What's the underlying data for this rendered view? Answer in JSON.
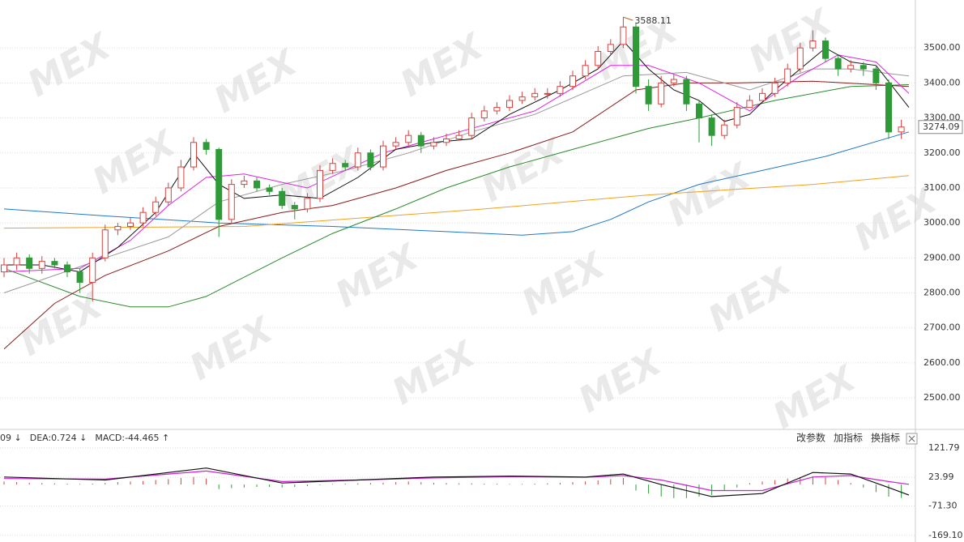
{
  "chart_data": [
    {
      "type": "candlestick",
      "watermark": "MEX",
      "up_color": "#d8413e",
      "down_color": "#2f9a38",
      "open": [
        2860,
        2880,
        2900,
        2870,
        2890,
        2880,
        2860,
        2830,
        2900,
        2980,
        2990,
        3000,
        3030,
        3060,
        3100,
        3160,
        3230,
        3210,
        3010,
        3110,
        3120,
        3100,
        3090,
        3050,
        3040,
        3070,
        3150,
        3170,
        3160,
        3200,
        3160,
        3220,
        3230,
        3250,
        3220,
        3230,
        3240,
        3250,
        3300,
        3320,
        3330,
        3350,
        3360,
        3370,
        3370,
        3390,
        3420,
        3450,
        3490,
        3510,
        3560,
        3390,
        3340,
        3400,
        3410,
        3340,
        3300,
        3250,
        3280,
        3330,
        3350,
        3370,
        3400,
        3440,
        3500,
        3520,
        3470,
        3440,
        3450,
        3440,
        3400,
        3260
      ],
      "high": [
        2900,
        2915,
        2910,
        2905,
        2900,
        2890,
        2870,
        2915,
        2995,
        3000,
        3015,
        3045,
        3075,
        3115,
        3180,
        3245,
        3240,
        3215,
        3125,
        3135,
        3130,
        3110,
        3100,
        3060,
        3085,
        3165,
        3185,
        3180,
        3215,
        3210,
        3235,
        3245,
        3265,
        3260,
        3245,
        3255,
        3265,
        3315,
        3335,
        3345,
        3365,
        3375,
        3385,
        3385,
        3405,
        3435,
        3465,
        3505,
        3525,
        3588.11,
        3570,
        3410,
        3420,
        3425,
        3420,
        3350,
        3310,
        3295,
        3345,
        3365,
        3385,
        3415,
        3455,
        3515,
        3550,
        3530,
        3480,
        3465,
        3460,
        3450,
        3410,
        3295
      ],
      "low": [
        2845,
        2865,
        2855,
        2855,
        2870,
        2845,
        2800,
        2775,
        2890,
        2965,
        2980,
        2990,
        3020,
        3050,
        3090,
        3150,
        3195,
        2960,
        3000,
        3100,
        3090,
        3080,
        3040,
        3010,
        3030,
        3060,
        3140,
        3150,
        3150,
        3150,
        3150,
        3210,
        3220,
        3200,
        3210,
        3220,
        3235,
        3240,
        3290,
        3310,
        3320,
        3340,
        3350,
        3355,
        3360,
        3380,
        3410,
        3440,
        3480,
        3500,
        3370,
        3320,
        3330,
        3390,
        3320,
        3230,
        3220,
        3240,
        3270,
        3330,
        3350,
        3360,
        3390,
        3430,
        3490,
        3460,
        3420,
        3430,
        3420,
        3380,
        3240,
        3240
      ],
      "close": [
        2880,
        2900,
        2870,
        2890,
        2880,
        2860,
        2830,
        2900,
        2980,
        2990,
        3000,
        3030,
        3060,
        3100,
        3160,
        3230,
        3210,
        3010,
        3110,
        3120,
        3100,
        3090,
        3050,
        3040,
        3070,
        3150,
        3170,
        3160,
        3200,
        3160,
        3220,
        3230,
        3250,
        3220,
        3230,
        3240,
        3250,
        3300,
        3320,
        3330,
        3350,
        3360,
        3370,
        3370,
        3390,
        3420,
        3450,
        3490,
        3510,
        3560,
        3390,
        3340,
        3400,
        3410,
        3340,
        3300,
        3250,
        3280,
        3330,
        3350,
        3370,
        3400,
        3440,
        3500,
        3520,
        3470,
        3440,
        3450,
        3440,
        3400,
        3260,
        3274.09
      ],
      "lines": [
        {
          "color": "#1f78c8",
          "x": [
            0,
            8,
            17,
            26,
            35,
            41,
            45,
            48,
            51,
            55,
            60,
            65,
            71.6
          ],
          "values": [
            3040,
            3020,
            3000,
            2990,
            2975,
            2965,
            2975,
            3010,
            3060,
            3110,
            3150,
            3190,
            3260
          ]
        },
        {
          "color": "#f0a020",
          "x": [
            0,
            19,
            38,
            51,
            64,
            71.6
          ],
          "values": [
            2985,
            2990,
            3040,
            3080,
            3110,
            3135
          ]
        },
        {
          "color": "#2a8a2a",
          "x": [
            0,
            6,
            10,
            13,
            16,
            22,
            26,
            31,
            35,
            40,
            45,
            51,
            55,
            61,
            67,
            71.6
          ],
          "values": [
            2870,
            2790,
            2760,
            2760,
            2790,
            2900,
            2970,
            3040,
            3100,
            3160,
            3210,
            3270,
            3300,
            3350,
            3390,
            3395
          ]
        },
        {
          "color": "#8b1a1a",
          "x": [
            0,
            4,
            8,
            13,
            17,
            22,
            26,
            31,
            35,
            40,
            45,
            50,
            54,
            58,
            64,
            71.6
          ],
          "values": [
            2640,
            2770,
            2850,
            2920,
            2990,
            3030,
            3050,
            3100,
            3150,
            3200,
            3260,
            3380,
            3400,
            3400,
            3405,
            3390
          ]
        },
        {
          "color": "#999999",
          "x": [
            0,
            8,
            13,
            17,
            22,
            27,
            32,
            37,
            42,
            49,
            54,
            59,
            64,
            67,
            71.6
          ],
          "values": [
            2800,
            2900,
            2960,
            3060,
            3110,
            3150,
            3200,
            3260,
            3310,
            3420,
            3430,
            3380,
            3440,
            3440,
            3420
          ]
        },
        {
          "color": "#e020e0",
          "x": [
            0,
            6,
            10,
            13,
            16,
            19,
            24,
            30,
            36,
            42,
            48,
            51,
            55,
            59,
            63,
            66,
            69,
            71.6
          ],
          "values": [
            2860,
            2870,
            2950,
            3050,
            3130,
            3140,
            3100,
            3200,
            3260,
            3320,
            3450,
            3450,
            3400,
            3320,
            3420,
            3480,
            3460,
            3370
          ]
        },
        {
          "color": "#111111",
          "x": [
            0,
            3,
            6,
            9,
            12,
            15,
            17,
            19,
            22,
            25,
            28,
            31,
            34,
            37,
            40,
            44,
            47,
            49,
            51,
            53,
            55,
            57,
            59,
            61,
            63,
            65,
            67,
            69,
            71.6
          ],
          "values": [
            2880,
            2880,
            2860,
            2930,
            3030,
            3200,
            3110,
            3070,
            3080,
            3070,
            3130,
            3210,
            3230,
            3240,
            3310,
            3380,
            3440,
            3520,
            3440,
            3380,
            3350,
            3290,
            3310,
            3380,
            3440,
            3500,
            3460,
            3450,
            3330
          ]
        }
      ],
      "ylim": [
        2410,
        3637
      ],
      "yticks": [
        {
          "value": 3500,
          "label": "3500.00"
        },
        {
          "value": 3400,
          "label": "3400.00"
        },
        {
          "value": 3300,
          "label": "3300.00"
        },
        {
          "value": 3200,
          "label": "3200.00"
        },
        {
          "value": 3100,
          "label": "3100.00"
        },
        {
          "value": 3000,
          "label": "3000.00"
        },
        {
          "value": 2900,
          "label": "2900.00"
        },
        {
          "value": 2800,
          "label": "2800.00"
        },
        {
          "value": 2700,
          "label": "2700.00"
        },
        {
          "value": 2600,
          "label": "2600.00"
        },
        {
          "value": 2500,
          "label": "2500.00"
        }
      ],
      "grid": true,
      "last_value": 3274.09,
      "max_value": 3588.11,
      "max_index": 49
    },
    {
      "type": "macd",
      "labels": [
        {
          "text": "09 ↓",
          "color": "#111111"
        },
        {
          "text": "DEA:0.724 ↓",
          "color": "#d020d0"
        },
        {
          "text": "MACD:-44.465 ↑",
          "color": "#555555"
        }
      ],
      "buttons": [
        "改参数",
        "加指标",
        "换指标"
      ],
      "dif": {
        "color": "#111111",
        "x": [
          0,
          8,
          16,
          22,
          28,
          34,
          40,
          46,
          49,
          52,
          56,
          60,
          64,
          67,
          70,
          71.6
        ],
        "values": [
          25,
          15,
          55,
          5,
          15,
          25,
          28,
          25,
          35,
          0,
          -40,
          -30,
          40,
          35,
          -10,
          -35
        ]
      },
      "dea": {
        "color": "#d020d0",
        "x": [
          0,
          8,
          16,
          22,
          28,
          34,
          40,
          46,
          49,
          52,
          56,
          60,
          64,
          67,
          70,
          71.6
        ],
        "values": [
          20,
          18,
          45,
          10,
          15,
          22,
          26,
          24,
          30,
          15,
          -20,
          -20,
          25,
          30,
          10,
          0.724
        ]
      },
      "histogram": [
        10,
        8,
        6,
        5,
        4,
        3,
        2,
        3,
        5,
        8,
        10,
        12,
        15,
        18,
        22,
        25,
        20,
        -15,
        -12,
        -10,
        -8,
        -8,
        -10,
        -8,
        -5,
        -2,
        2,
        3,
        4,
        5,
        6,
        8,
        10,
        8,
        6,
        5,
        4,
        4,
        3,
        3,
        2,
        2,
        3,
        4,
        6,
        8,
        10,
        14,
        18,
        22,
        -20,
        -30,
        -40,
        -45,
        -45,
        -40,
        -35,
        -20,
        -10,
        5,
        10,
        15,
        20,
        25,
        28,
        25,
        15,
        5,
        -10,
        -25,
        -40,
        -44.465
      ],
      "up_color": "#d8413e",
      "down_color": "#2f9a38",
      "ylim": [
        -191,
        143
      ],
      "yticks": [
        121.79,
        23.99,
        {
          "value": -71.3,
          "label": "-71.30"
        },
        {
          "value": -169.1,
          "label": "-169.10"
        }
      ]
    }
  ]
}
